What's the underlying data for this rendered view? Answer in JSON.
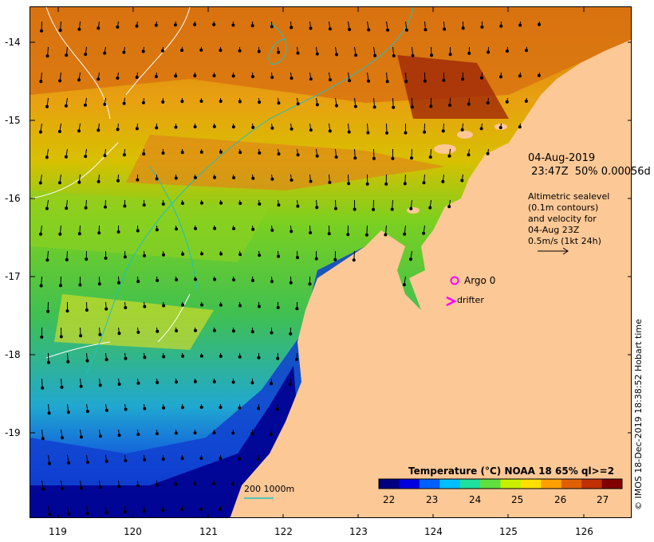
{
  "map": {
    "lat_labels": [
      "-14",
      "-15",
      "-16",
      "-17",
      "-18",
      "-19"
    ],
    "lon_labels": [
      "119",
      "120",
      "121",
      "122",
      "123",
      "124",
      "125",
      "126"
    ]
  },
  "info": {
    "date": "04-Aug-2019",
    "time_line": " 23:47Z  50% 0.00056d",
    "alt_line1": "Altimetric sealevel",
    "alt_line2": "(0.1m contours)",
    "alt_line3": "and velocity for",
    "alt_line4": "04-Aug 23Z",
    "alt_line5": "0.5m/s (1kt 24h)"
  },
  "markers": {
    "argo_label": "Argo 0",
    "drifter_label": "drifter",
    "argo_color": "#ff00ff",
    "drifter_color": "#ff00ff"
  },
  "scale": {
    "label": "200  1000m",
    "color": "#20c0c0"
  },
  "colorbar": {
    "title": "Temperature (°C) NOAA 18 65% ql>=2",
    "ticks": [
      "22",
      "23",
      "24",
      "25",
      "26",
      "27"
    ],
    "colors": [
      "#000080",
      "#0000e0",
      "#0060ff",
      "#00c0ff",
      "#20e0a0",
      "#60e040",
      "#c8f000",
      "#ffe000",
      "#ffa000",
      "#e06000",
      "#c03000",
      "#800000"
    ]
  },
  "credit": "© IMOS 18-Dec-2019 18:38:52 Hobart time",
  "land_color": "#fcc896"
}
